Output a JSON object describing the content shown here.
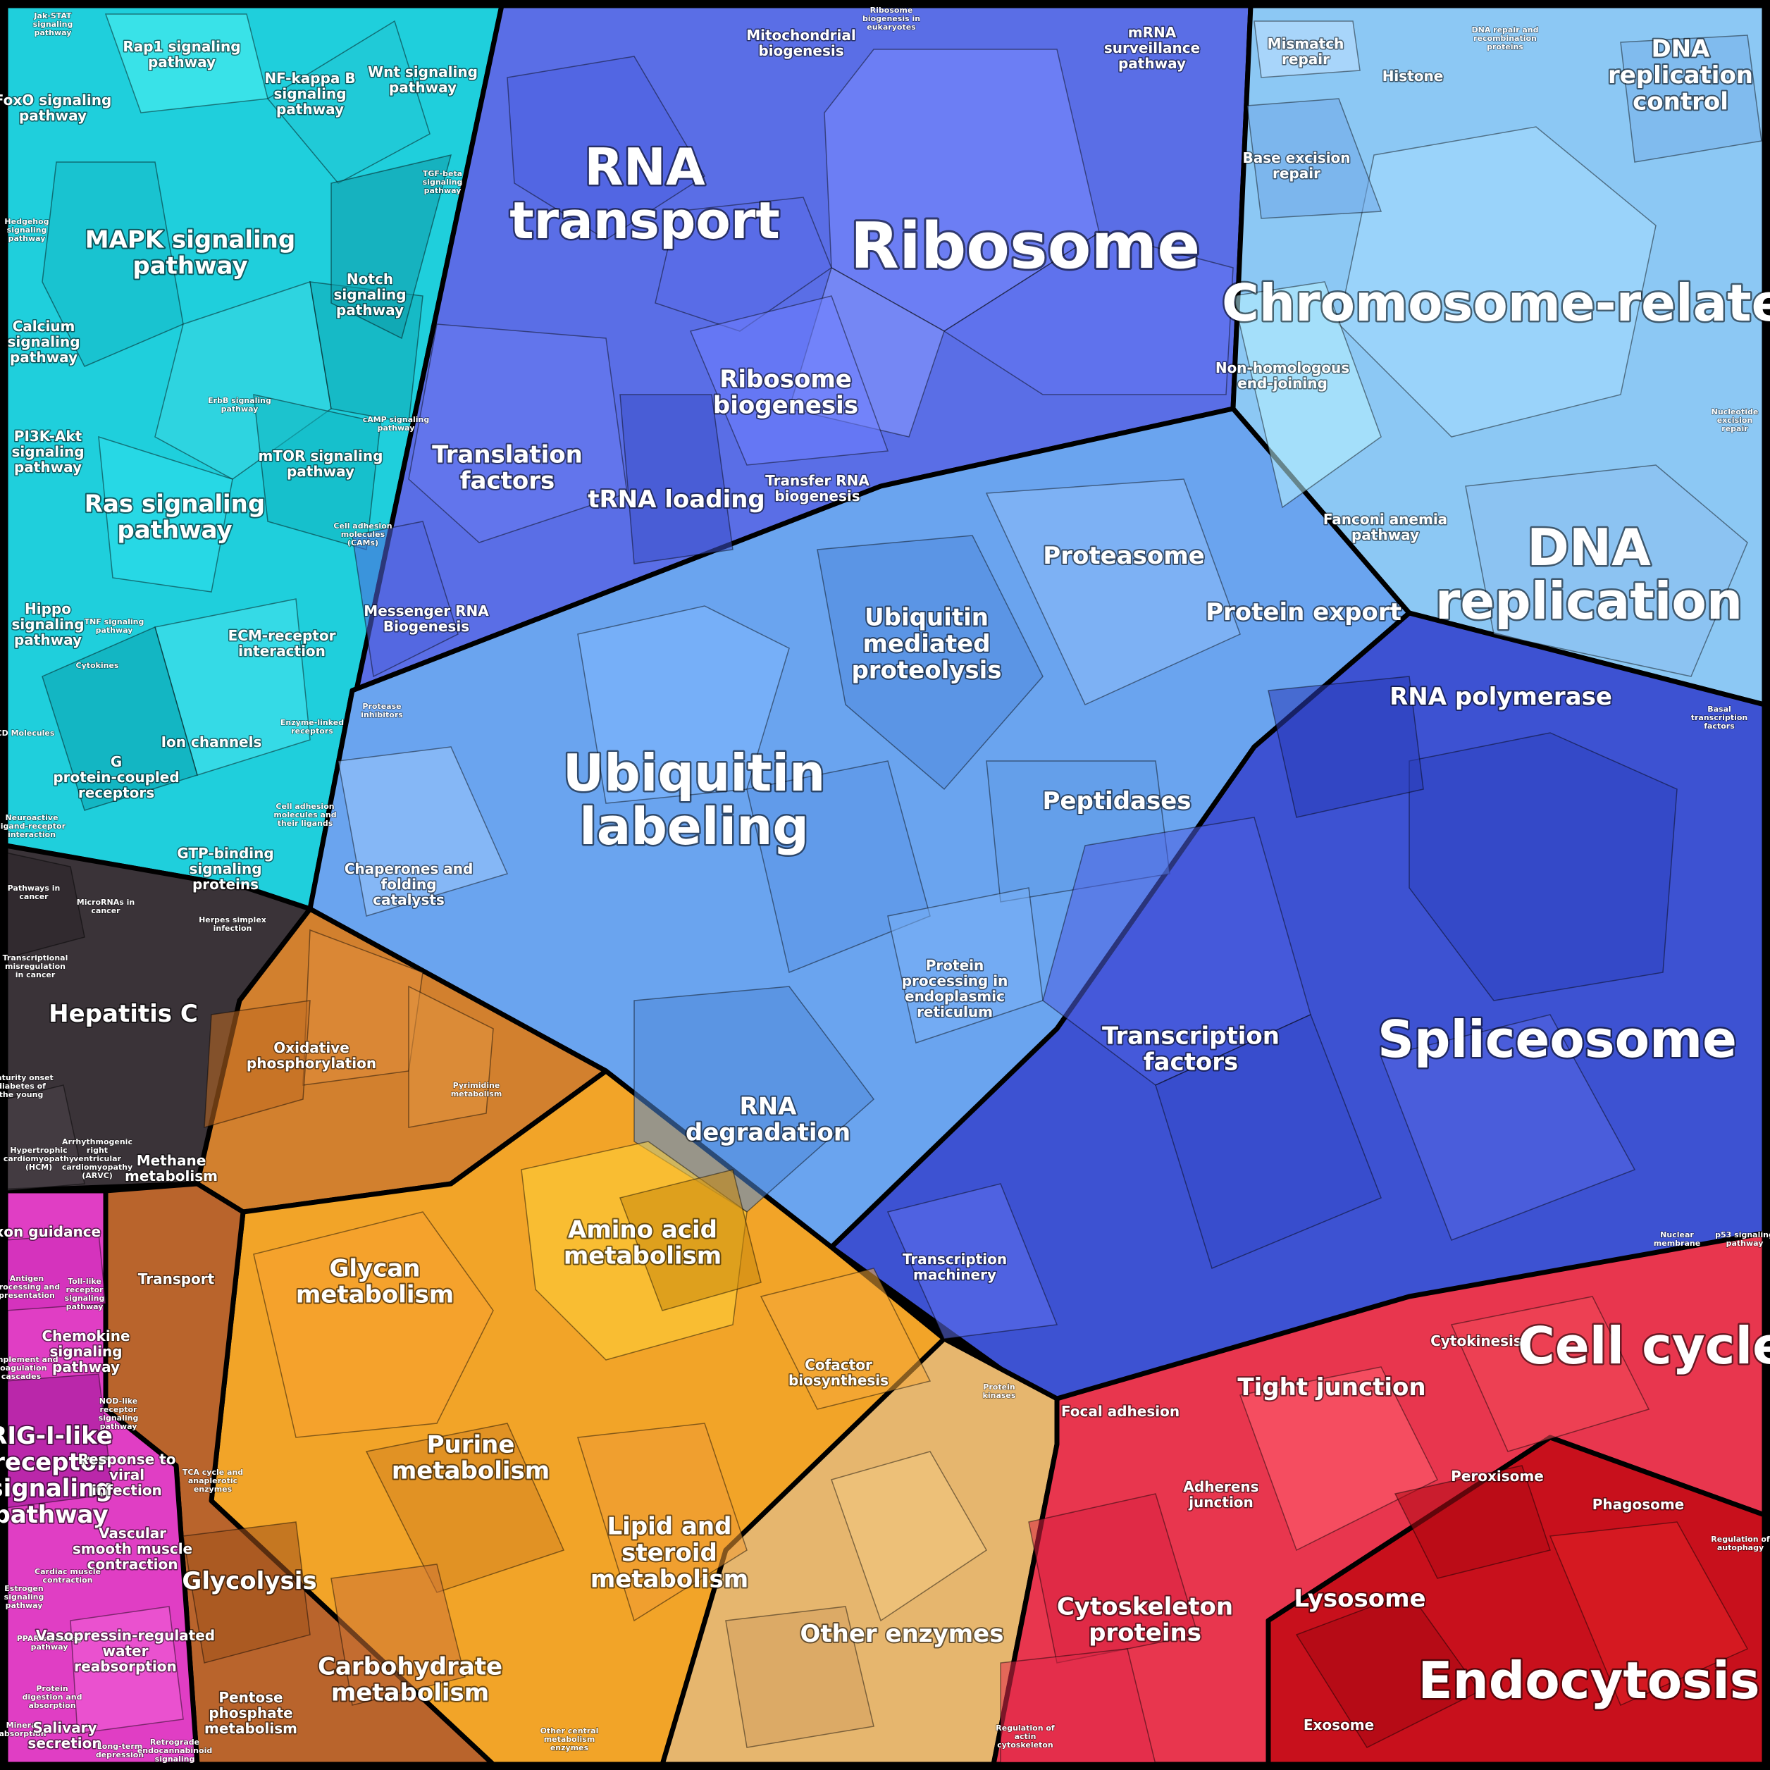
{
  "colors": {
    "signaling": "#1fcfdc",
    "rna": "#5269e0",
    "ribosome": "#6f82ff",
    "dna": "#8fc6f2",
    "ubiquitin": "#6aa4ef",
    "spliceosome": "#3a4ed0",
    "cancer": "#3a3338",
    "hepatitis": "#667066",
    "energy": "#d2802e",
    "metabolism": "#f2a428",
    "amino": "#f8cc34",
    "other_enzymes": "#e6b66e",
    "carbs": "#b9642c",
    "immune": "#e03ec4",
    "cell": "#e8364e",
    "endo": "#c8101c"
  },
  "regions": {
    "signaling": {
      "labels": {
        "jak_stat": "Jak-STAT signaling pathway",
        "rap1": "Rap1 signaling pathway",
        "nfkb": "NF-kappa B signaling pathway",
        "wnt": "Wnt signaling pathway",
        "foxo": "FoxO signaling pathway",
        "mapk": "MAPK signaling pathway",
        "tgf": "TGF-beta signaling pathway",
        "hedgehog": "Hedgehog signaling pathway",
        "notch": "Notch signaling pathway",
        "calcium": "Calcium signaling pathway",
        "erbb": "ErbB signaling pathway",
        "campp": "cAMP signaling pathway",
        "pi3k": "PI3K-Akt signaling pathway",
        "mtor": "mTOR signaling pathway",
        "ras": "Ras signaling pathway",
        "cams": "Cell adhesion molecules (CAMs)",
        "hippo": "Hippo signaling pathway",
        "tnf": "TNF signaling pathway",
        "ecm": "ECM-receptor interaction",
        "cytokines": "Cytokines",
        "cd": "CD Molecules",
        "ion": "Ion channels",
        "gpcr": "G protein-coupled receptors",
        "enzyme_linked": "Enzyme-linked receptors",
        "neuroactive": "Neuroactive ligand-receptor interaction",
        "cell_adhesion": "Cell adhesion molecules and their ligands",
        "gtp": "GTP-binding signaling proteins"
      }
    },
    "rna": {
      "labels": {
        "rna_transport": "RNA transport",
        "mito": "Mitochondrial biogenesis",
        "ribo_euk": "Ribosome biogenesis in eukaryotes",
        "mrna_surv": "mRNA surveillance pathway",
        "ribosome": "Ribosome",
        "translation": "Translation factors",
        "trna": "tRNA loading",
        "ribo_bio": "Ribosome biogenesis",
        "transfer": "Transfer RNA biogenesis",
        "messenger": "Messenger RNA Biogenesis"
      }
    },
    "dna": {
      "labels": {
        "mismatch": "Mismatch repair",
        "dna_repair": "DNA repair and recombination proteins",
        "histone": "Histone",
        "dna_rep_ctrl": "DNA replication control",
        "base_exc": "Base excision repair",
        "chromosome": "Chromosome-related",
        "nonhom": "Non-homologous end-joining",
        "nucleotide": "Nucleotide excision repair",
        "fanconi": "Fanconi anemia pathway",
        "dna_rep": "DNA replication"
      }
    },
    "ubiquitin": {
      "labels": {
        "proteasome": "Proteasome",
        "ubiq_med": "Ubiquitin mediated proteolysis",
        "protein_export": "Protein export",
        "protease_inh": "Protease inhibitors",
        "ubiquitin": "Ubiquitin labeling",
        "peptidases": "Peptidases",
        "chaperones": "Chaperones and folding catalysts",
        "er": "Protein processing in endoplasmic reticulum",
        "rna_deg": "RNA degradation"
      }
    },
    "transcription": {
      "labels": {
        "rna_pol": "RNA polymerase",
        "basal": "Basal transcription factors",
        "tf": "Transcription factors",
        "spliceosome": "Spliceosome",
        "machinery": "Transcription machinery"
      }
    },
    "cancer": {
      "labels": {
        "pathways": "Pathways in cancer",
        "micro": "MicroRNAs in cancer",
        "misreg": "Transcriptional misregulation in cancer",
        "hep_c": "Hepatitis C",
        "mody": "Maturity onset diabetes of the young",
        "hcm": "Hypertrophic cardiomyopathy (HCM)",
        "arvc": "Arrhythmogenic right ventricular cardiomyopathy (ARVC)",
        "herpes": "Herpes simplex infection"
      }
    },
    "metabolism": {
      "labels": {
        "oxphos": "Oxidative phosphorylation",
        "pyrimidine": "Pyrimidine metabolism",
        "methane": "Methane metabolism",
        "transport": "Transport",
        "glycan": "Glycan metabolism",
        "amino": "Amino acid metabolism",
        "cofactor": "Cofactor biosynthesis",
        "purine": "Purine metabolism",
        "lipid": "Lipid and steroid metabolism",
        "protein_kinases": "Protein kinases",
        "other_enzymes": "Other enzymes",
        "tca": "TCA cycle and anaplerotic enzymes",
        "glycolysis": "Glycolysis",
        "carbohydrate": "Carbohydrate metabolism",
        "pentose": "Pentose phosphate metabolism",
        "other_central": "Other central metabolism enzymes"
      }
    },
    "immune": {
      "labels": {
        "axon": "Axon guidance",
        "toll": "Toll-like receptor signaling pathway",
        "antigen": "Antigen processing and presentation",
        "chemokine": "Chemokine signaling pathway",
        "complement": "Complement and coagulation cascades",
        "nod": "NOD-like receptor signaling pathway",
        "rig": "RIG-I-like receptor signaling pathway",
        "viral": "Response to viral infection",
        "vascular": "Vascular smooth muscle contraction",
        "cardiac": "Cardiac muscle contraction",
        "estrogen": "Estrogen signaling pathway",
        "ppar": "PPAR signaling pathway",
        "vasopressin": "Vasopressin-regulated water reabsorption",
        "digestion": "Protein digestion and absorption",
        "mineral": "Mineral absorption",
        "salivary": "Salivary secretion",
        "ltd": "Long-term depression",
        "retro": "Retrograde endocannabinoid signaling"
      }
    },
    "cell": {
      "labels": {
        "nuclear": "Nuclear membrane",
        "p53": "p53 signaling pathway",
        "cytokinesis": "Cytokinesis",
        "tight": "Tight junction",
        "cell_cycle": "Cell cycle",
        "focal": "Focal adhesion",
        "adherens": "Adherens junction",
        "peroxisome": "Peroxisome",
        "phagosome": "Phagosome",
        "autophagy": "Regulation of autophagy",
        "lysosome": "Lysosome",
        "cytoskeleton": "Cytoskeleton proteins",
        "endocytosis": "Endocytosis",
        "exosome": "Exosome",
        "actin": "Regulation of actin cytoskeleton"
      }
    }
  }
}
